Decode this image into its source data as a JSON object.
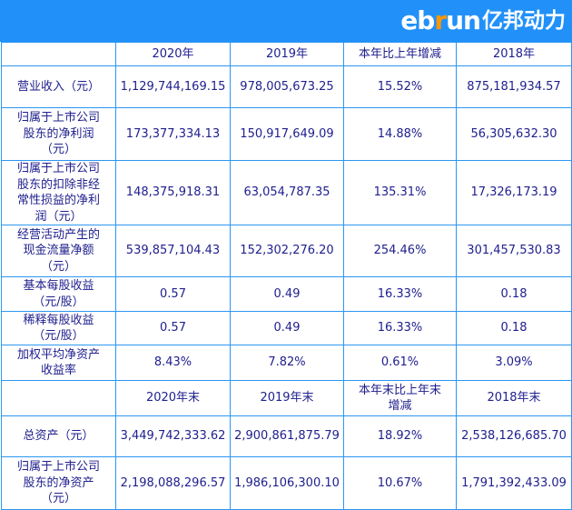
{
  "banner": {
    "bg_color": "#2191f9",
    "logo": {
      "part1": "eb",
      "accent": "r",
      "part2": "un",
      "cn": "亿邦动力",
      "accent_color": "#ff9800"
    }
  },
  "table": {
    "text_color": "#20208f",
    "border_color": "#2b97f2",
    "header1": [
      "",
      "2020年",
      "2019年",
      "本年比上年增减",
      "2018年"
    ],
    "rows1": [
      {
        "label": "营业收入（元）",
        "values": [
          "1,129,744,169.15",
          "978,005,673.25",
          "15.52%",
          "875,181,934.57"
        ]
      },
      {
        "label": "归属于上市公司股东的净利润（元）",
        "values": [
          "173,377,334.13",
          "150,917,649.09",
          "14.88%",
          "56,305,632.30"
        ]
      },
      {
        "label": "归属于上市公司股东的扣除非经常性损益的净利润（元）",
        "values": [
          "148,375,918.31",
          "63,054,787.35",
          "135.31%",
          "17,326,173.19"
        ]
      },
      {
        "label": "经营活动产生的现金流量净额（元）",
        "values": [
          "539,857,104.43",
          "152,302,276.20",
          "254.46%",
          "301,457,530.83"
        ]
      },
      {
        "label": "基本每股收益（元/股）",
        "values": [
          "0.57",
          "0.49",
          "16.33%",
          "0.18"
        ]
      },
      {
        "label": "稀释每股收益（元/股）",
        "values": [
          "0.57",
          "0.49",
          "16.33%",
          "0.18"
        ]
      },
      {
        "label": "加权平均净资产收益率",
        "values": [
          "8.43%",
          "7.82%",
          "0.61%",
          "3.09%"
        ]
      }
    ],
    "header2": [
      "",
      "2020年末",
      "2019年末",
      "本年末比上年末增减",
      "2018年末"
    ],
    "rows2": [
      {
        "label": "总资产（元）",
        "values": [
          "3,449,742,333.62",
          "2,900,861,875.79",
          "18.92%",
          "2,538,126,685.70"
        ]
      },
      {
        "label": "归属于上市公司股东的净资产（元）",
        "values": [
          "2,198,088,296.57",
          "1,986,106,300.10",
          "10.67%",
          "1,791,392,433.09"
        ]
      }
    ]
  }
}
